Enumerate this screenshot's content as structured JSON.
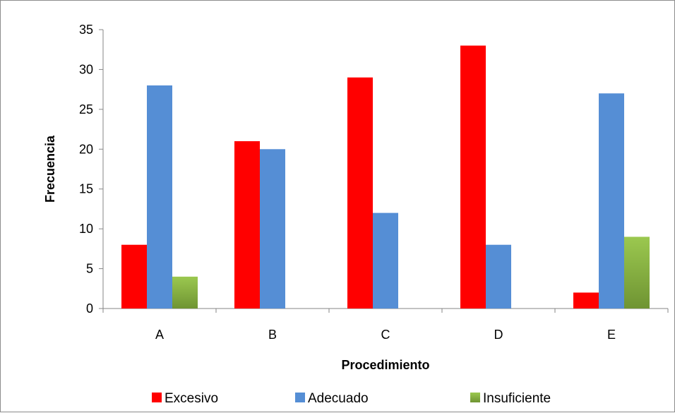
{
  "chart_data": {
    "type": "bar",
    "categories": [
      "A",
      "B",
      "C",
      "D",
      "E"
    ],
    "series": [
      {
        "name": "Excesivo",
        "values": [
          8,
          21,
          29,
          33,
          2
        ],
        "color": "#ff0000"
      },
      {
        "name": "Adecuado",
        "values": [
          28,
          20,
          12,
          8,
          27
        ],
        "color": "#558ed5"
      },
      {
        "name": "Insuficiente",
        "values": [
          4,
          0,
          0,
          0,
          9
        ],
        "color": "#8fb848"
      }
    ],
    "xlabel": "Procedimiento",
    "ylabel": "Frecuencia",
    "ylim": [
      0,
      35
    ],
    "yticks": [
      0,
      5,
      10,
      15,
      20,
      25,
      30,
      35
    ],
    "grid": false,
    "legend_position": "bottom"
  }
}
